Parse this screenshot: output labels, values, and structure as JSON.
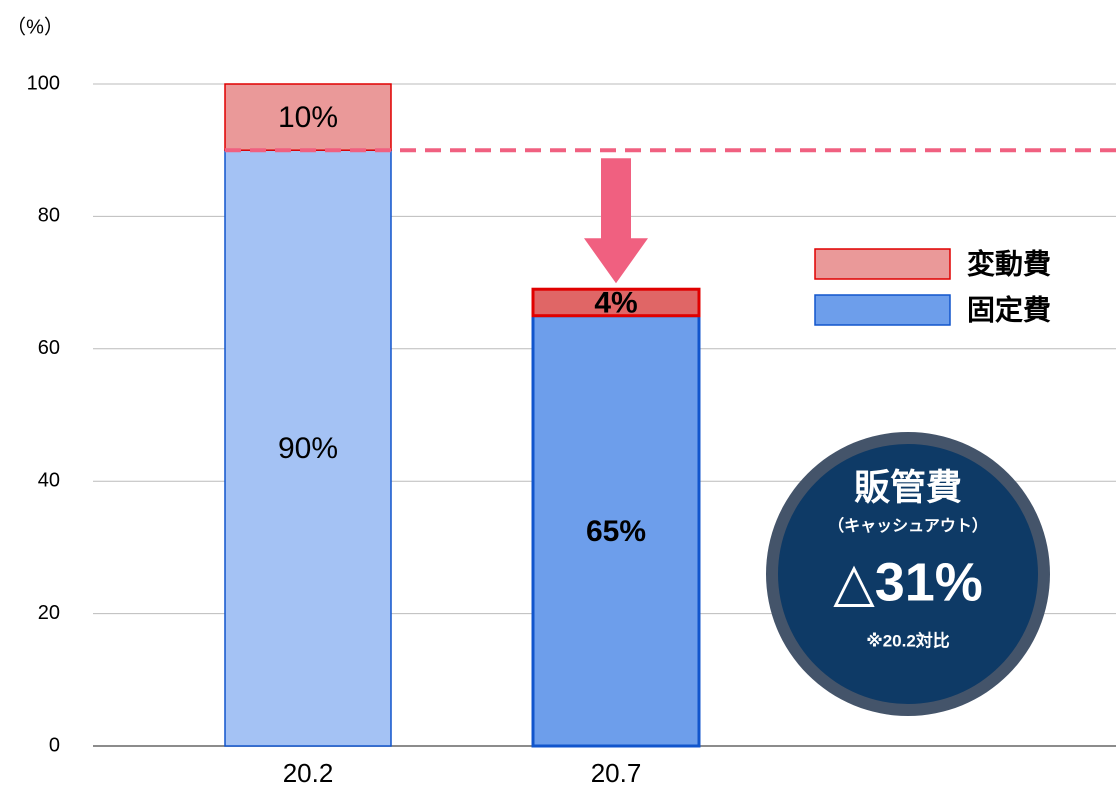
{
  "chart_data": {
    "type": "bar",
    "stacked": true,
    "y_label": "（%）",
    "categories": [
      "20.2",
      "20.7"
    ],
    "series": [
      {
        "name": "固定費",
        "color": "#6d9eeb",
        "colors": [
          "#a4c2f4",
          "#6d9eeb"
        ],
        "border": "#1155cc",
        "values": [
          90,
          65
        ],
        "value_labels": [
          "90%",
          "65%"
        ]
      },
      {
        "name": "変動費",
        "color": "#ea9999",
        "colors": [
          "#ea9999",
          "#e06666"
        ],
        "border": "#e00000",
        "values": [
          10,
          4
        ],
        "value_labels": [
          "10%",
          "4%"
        ]
      }
    ],
    "ylim": [
      0,
      100
    ],
    "yticks": [
      0,
      20,
      40,
      60,
      80,
      100
    ],
    "grid": true,
    "legend": "right",
    "badge": {
      "title": "販管費",
      "subtitle": "（キャッシュアウト）",
      "value": "△31%",
      "note": "※20.2対比"
    }
  }
}
